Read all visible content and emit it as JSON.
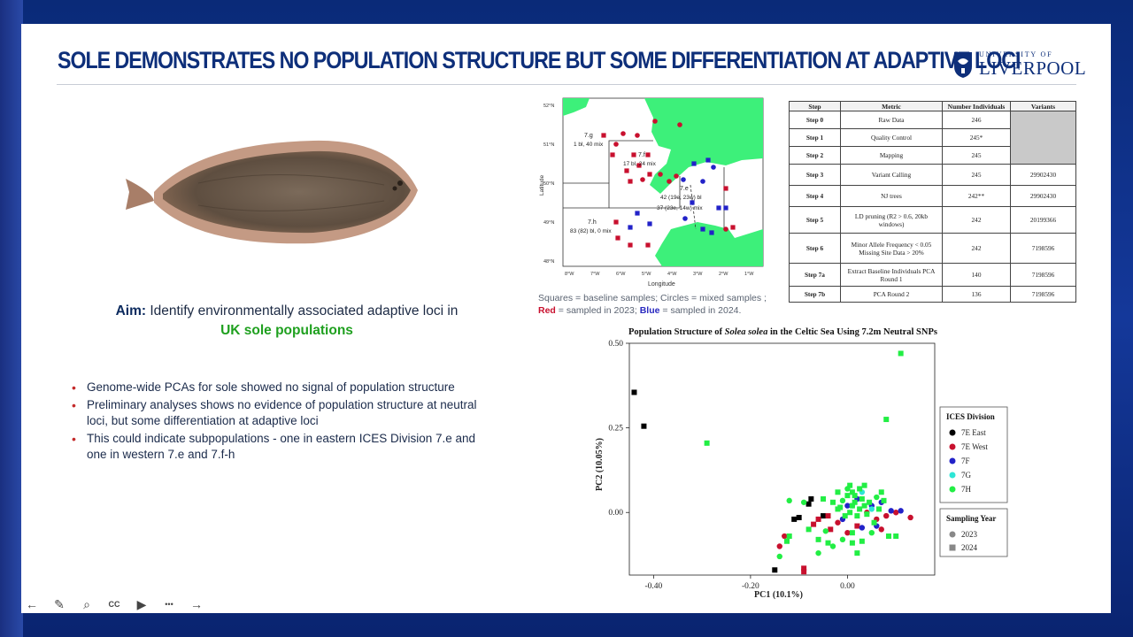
{
  "slide": {
    "title": "SOLE DEMONSTRATES NO POPULATION STRUCTURE BUT SOME DIFFERENTIATION AT ADAPTIVE LOCI",
    "logo": {
      "top_text": "UNIVERSITY OF",
      "main_text": "LIVERPOOL"
    }
  },
  "aim": {
    "label": "Aim:",
    "text": "Identify environmentally associated adaptive loci in",
    "highlight": "UK sole populations"
  },
  "bullets": [
    "Genome-wide PCAs for sole showed no signal of population structure",
    "Preliminary analyses shows no evidence of population structure at neutral loci, but some differentiation at adaptive loci",
    "This could indicate subpopulations - one in eastern ICES Division 7.e and one in western 7.e and 7.f-h"
  ],
  "map": {
    "xlabel": "Longitude",
    "ylabel": "Latitude",
    "lat_ticks": [
      "52°N",
      "51°N",
      "50°N",
      "49°N",
      "48°N"
    ],
    "lon_ticks": [
      "8°W",
      "7°W",
      "6°W",
      "5°W",
      "4°W",
      "3°W",
      "2°W",
      "1°W"
    ],
    "labels": [
      "7.g",
      "1 bl, 40 mix",
      "7.f",
      "17 bl, 24 mix",
      "7.e",
      "42 (19e, 23w) bl",
      "37 (23e, 14w) mix",
      "7.h",
      "83 (82) bl, 0 mix"
    ],
    "caption_a": "Squares = baseline samples; Circles = mixed samples ;",
    "caption_red": "Red",
    "caption_b": "= sampled in 2023;",
    "caption_blue": "Blue",
    "caption_c": "= sampled in 2024."
  },
  "steps_table": {
    "headers": [
      "Step",
      "Metric",
      "Number Individuals",
      "Variants"
    ],
    "rows": [
      [
        "Step 0",
        "Raw Data",
        "246",
        ""
      ],
      [
        "Step 1",
        "Quality Control",
        "245*",
        ""
      ],
      [
        "Step 2",
        "Mapping",
        "245",
        ""
      ],
      [
        "Step 3",
        "Variant Calling",
        "245",
        "29902430"
      ],
      [
        "Step 4",
        "NJ trees",
        "242**",
        "29902430"
      ],
      [
        "Step 5",
        "LD pruning (R2 > 0.6, 20kb windows)",
        "242",
        "20199366"
      ],
      [
        "Step 6",
        "Minor Allele Frequency < 0.05 Missing Site Data > 20%",
        "242",
        "7198596"
      ],
      [
        "Step 7a",
        "Extract Baseline Individuals PCA Round 1",
        "140",
        "7198596"
      ],
      [
        "Step 7b",
        "PCA Round 2",
        "136",
        "7198596"
      ]
    ]
  },
  "chart_data": {
    "type": "scatter",
    "title_prefix": "Population Structure of",
    "title_italic": "Solea solea",
    "title_suffix": "in the Celtic Sea Using 7.2m Neutral SNPs",
    "xlabel": "PC1 (10.1%)",
    "ylabel": "PC2 (10.05%)",
    "xlim": [
      -0.45,
      0.18
    ],
    "ylim": [
      -0.185,
      0.5
    ],
    "x_ticks": [
      -0.4,
      -0.2,
      0.0
    ],
    "x_tick_labels": [
      "-0.40",
      "-0.20",
      "0.00"
    ],
    "y_ticks": [
      0.0,
      0.25,
      0.5
    ],
    "y_tick_labels": [
      "0.00",
      "0.25",
      "0.50"
    ],
    "legend_division_title": "ICES Division",
    "legend_year_title": "Sampling Year",
    "series": [
      {
        "name": "7E East",
        "color": "#000000"
      },
      {
        "name": "7E West",
        "color": "#c8102e"
      },
      {
        "name": "7F",
        "color": "#2222c8"
      },
      {
        "name": "7G",
        "color": "#2ee6d6"
      },
      {
        "name": "7H",
        "color": "#22ee44"
      }
    ],
    "years": [
      {
        "name": "2023",
        "shape": "circle"
      },
      {
        "name": "2024",
        "shape": "square"
      }
    ],
    "points": [
      {
        "x": -0.44,
        "y": 0.355,
        "s": "7E East",
        "m": "square"
      },
      {
        "x": -0.42,
        "y": 0.255,
        "s": "7E East",
        "m": "square"
      },
      {
        "x": -0.15,
        "y": -0.17,
        "s": "7E East",
        "m": "square"
      },
      {
        "x": -0.11,
        "y": -0.02,
        "s": "7E East",
        "m": "square"
      },
      {
        "x": -0.08,
        "y": 0.025,
        "s": "7E East",
        "m": "square"
      },
      {
        "x": -0.075,
        "y": 0.04,
        "s": "7E East",
        "m": "square"
      },
      {
        "x": -0.05,
        "y": -0.01,
        "s": "7E East",
        "m": "square"
      },
      {
        "x": -0.1,
        "y": -0.015,
        "s": "7E East",
        "m": "square"
      },
      {
        "x": -0.14,
        "y": -0.1,
        "s": "7E West",
        "m": "circle"
      },
      {
        "x": -0.13,
        "y": -0.07,
        "s": "7E West",
        "m": "circle"
      },
      {
        "x": -0.09,
        "y": -0.165,
        "s": "7E West",
        "m": "square"
      },
      {
        "x": -0.09,
        "y": -0.175,
        "s": "7E West",
        "m": "square"
      },
      {
        "x": -0.07,
        "y": -0.035,
        "s": "7E West",
        "m": "square"
      },
      {
        "x": -0.06,
        "y": -0.02,
        "s": "7E West",
        "m": "square"
      },
      {
        "x": -0.04,
        "y": -0.01,
        "s": "7E West",
        "m": "square"
      },
      {
        "x": -0.02,
        "y": -0.03,
        "s": "7E West",
        "m": "circle"
      },
      {
        "x": 0.0,
        "y": -0.06,
        "s": "7E West",
        "m": "circle"
      },
      {
        "x": 0.02,
        "y": -0.04,
        "s": "7E West",
        "m": "square"
      },
      {
        "x": 0.04,
        "y": 0.0,
        "s": "7E West",
        "m": "circle"
      },
      {
        "x": 0.06,
        "y": -0.02,
        "s": "7E West",
        "m": "circle"
      },
      {
        "x": 0.08,
        "y": -0.01,
        "s": "7E West",
        "m": "circle"
      },
      {
        "x": 0.1,
        "y": 0.0,
        "s": "7E West",
        "m": "circle"
      },
      {
        "x": 0.13,
        "y": -0.015,
        "s": "7E West",
        "m": "circle"
      },
      {
        "x": 0.07,
        "y": -0.05,
        "s": "7E West",
        "m": "circle"
      },
      {
        "x": -0.035,
        "y": -0.05,
        "s": "7E West",
        "m": "square"
      },
      {
        "x": 0.02,
        "y": 0.04,
        "s": "7F",
        "m": "circle"
      },
      {
        "x": 0.05,
        "y": 0.02,
        "s": "7F",
        "m": "circle"
      },
      {
        "x": 0.09,
        "y": 0.005,
        "s": "7F",
        "m": "circle"
      },
      {
        "x": 0.11,
        "y": 0.005,
        "s": "7F",
        "m": "circle"
      },
      {
        "x": 0.06,
        "y": -0.04,
        "s": "7F",
        "m": "circle"
      },
      {
        "x": 0.03,
        "y": -0.045,
        "s": "7F",
        "m": "circle"
      },
      {
        "x": -0.01,
        "y": -0.02,
        "s": "7F",
        "m": "circle"
      },
      {
        "x": 0.0,
        "y": 0.02,
        "s": "7F",
        "m": "circle"
      },
      {
        "x": 0.07,
        "y": 0.03,
        "s": "7F",
        "m": "circle"
      },
      {
        "x": 0.03,
        "y": 0.06,
        "s": "7G",
        "m": "circle"
      },
      {
        "x": 0.01,
        "y": 0.02,
        "s": "7G",
        "m": "circle"
      },
      {
        "x": 0.05,
        "y": 0.01,
        "s": "7G",
        "m": "circle"
      },
      {
        "x": 0.11,
        "y": 0.47,
        "s": "7H",
        "m": "square"
      },
      {
        "x": 0.08,
        "y": 0.275,
        "s": "7H",
        "m": "square"
      },
      {
        "x": -0.29,
        "y": 0.205,
        "s": "7H",
        "m": "square"
      },
      {
        "x": -0.12,
        "y": 0.035,
        "s": "7H",
        "m": "circle"
      },
      {
        "x": -0.12,
        "y": -0.07,
        "s": "7H",
        "m": "square"
      },
      {
        "x": -0.125,
        "y": -0.085,
        "s": "7H",
        "m": "square"
      },
      {
        "x": -0.09,
        "y": 0.03,
        "s": "7H",
        "m": "circle"
      },
      {
        "x": -0.08,
        "y": -0.05,
        "s": "7H",
        "m": "square"
      },
      {
        "x": -0.06,
        "y": -0.08,
        "s": "7H",
        "m": "square"
      },
      {
        "x": -0.04,
        "y": -0.09,
        "s": "7H",
        "m": "square"
      },
      {
        "x": -0.03,
        "y": -0.1,
        "s": "7H",
        "m": "circle"
      },
      {
        "x": -0.01,
        "y": -0.08,
        "s": "7H",
        "m": "circle"
      },
      {
        "x": 0.01,
        "y": -0.09,
        "s": "7H",
        "m": "square"
      },
      {
        "x": 0.03,
        "y": -0.085,
        "s": "7H",
        "m": "square"
      },
      {
        "x": 0.05,
        "y": -0.06,
        "s": "7H",
        "m": "circle"
      },
      {
        "x": 0.02,
        "y": -0.12,
        "s": "7H",
        "m": "square"
      },
      {
        "x": 0.085,
        "y": -0.07,
        "s": "7H",
        "m": "square"
      },
      {
        "x": 0.1,
        "y": -0.07,
        "s": "7H",
        "m": "square"
      },
      {
        "x": 0.06,
        "y": 0.045,
        "s": "7H",
        "m": "circle"
      },
      {
        "x": 0.07,
        "y": 0.06,
        "s": "7H",
        "m": "square"
      },
      {
        "x": -0.05,
        "y": 0.04,
        "s": "7H",
        "m": "square"
      },
      {
        "x": -0.03,
        "y": 0.03,
        "s": "7H",
        "m": "square"
      },
      {
        "x": -0.02,
        "y": 0.01,
        "s": "7H",
        "m": "square"
      },
      {
        "x": -0.01,
        "y": 0.035,
        "s": "7H",
        "m": "circle"
      },
      {
        "x": 0.0,
        "y": 0.05,
        "s": "7H",
        "m": "square"
      },
      {
        "x": 0.005,
        "y": 0.0,
        "s": "7H",
        "m": "square"
      },
      {
        "x": 0.01,
        "y": 0.02,
        "s": "7H",
        "m": "square"
      },
      {
        "x": 0.015,
        "y": 0.03,
        "s": "7H",
        "m": "square"
      },
      {
        "x": 0.02,
        "y": -0.01,
        "s": "7H",
        "m": "square"
      },
      {
        "x": 0.025,
        "y": 0.01,
        "s": "7H",
        "m": "square"
      },
      {
        "x": 0.03,
        "y": 0.04,
        "s": "7H",
        "m": "square"
      },
      {
        "x": 0.035,
        "y": 0.02,
        "s": "7H",
        "m": "square"
      },
      {
        "x": 0.04,
        "y": -0.005,
        "s": "7H",
        "m": "square"
      },
      {
        "x": 0.045,
        "y": 0.03,
        "s": "7H",
        "m": "square"
      },
      {
        "x": -0.015,
        "y": 0.015,
        "s": "7H",
        "m": "square"
      },
      {
        "x": -0.005,
        "y": -0.01,
        "s": "7H",
        "m": "square"
      },
      {
        "x": 0.01,
        "y": 0.06,
        "s": "7H",
        "m": "square"
      },
      {
        "x": 0.025,
        "y": 0.07,
        "s": "7H",
        "m": "square"
      },
      {
        "x": 0.035,
        "y": 0.08,
        "s": "7H",
        "m": "square"
      },
      {
        "x": 0.0,
        "y": 0.07,
        "s": "7H",
        "m": "circle"
      },
      {
        "x": 0.005,
        "y": 0.08,
        "s": "7H",
        "m": "square"
      },
      {
        "x": 0.015,
        "y": 0.05,
        "s": "7H",
        "m": "square"
      },
      {
        "x": -0.02,
        "y": 0.06,
        "s": "7H",
        "m": "square"
      },
      {
        "x": -0.14,
        "y": -0.13,
        "s": "7H",
        "m": "circle"
      },
      {
        "x": -0.06,
        "y": -0.12,
        "s": "7H",
        "m": "circle"
      },
      {
        "x": 0.01,
        "y": -0.06,
        "s": "7H",
        "m": "square"
      },
      {
        "x": 0.055,
        "y": -0.03,
        "s": "7H",
        "m": "square"
      },
      {
        "x": 0.065,
        "y": 0.01,
        "s": "7H",
        "m": "square"
      },
      {
        "x": 0.075,
        "y": 0.035,
        "s": "7H",
        "m": "square"
      },
      {
        "x": -0.045,
        "y": -0.055,
        "s": "7H",
        "m": "circle"
      }
    ]
  },
  "toolbar": [
    {
      "name": "prev-slide-button",
      "icon": "left-arrow-icon",
      "glyph": "←"
    },
    {
      "name": "pen-tool-button",
      "icon": "pen-icon",
      "glyph": "✎"
    },
    {
      "name": "zoom-button",
      "icon": "magnifier-icon",
      "glyph": "⌕"
    },
    {
      "name": "subtitles-button",
      "icon": "cc-icon",
      "glyph": "CC"
    },
    {
      "name": "camera-button",
      "icon": "video-camera-icon",
      "glyph": "▶"
    },
    {
      "name": "more-options-button",
      "icon": "more-icon",
      "glyph": "•••"
    },
    {
      "name": "next-slide-button",
      "icon": "right-arrow-icon",
      "glyph": "→"
    }
  ]
}
